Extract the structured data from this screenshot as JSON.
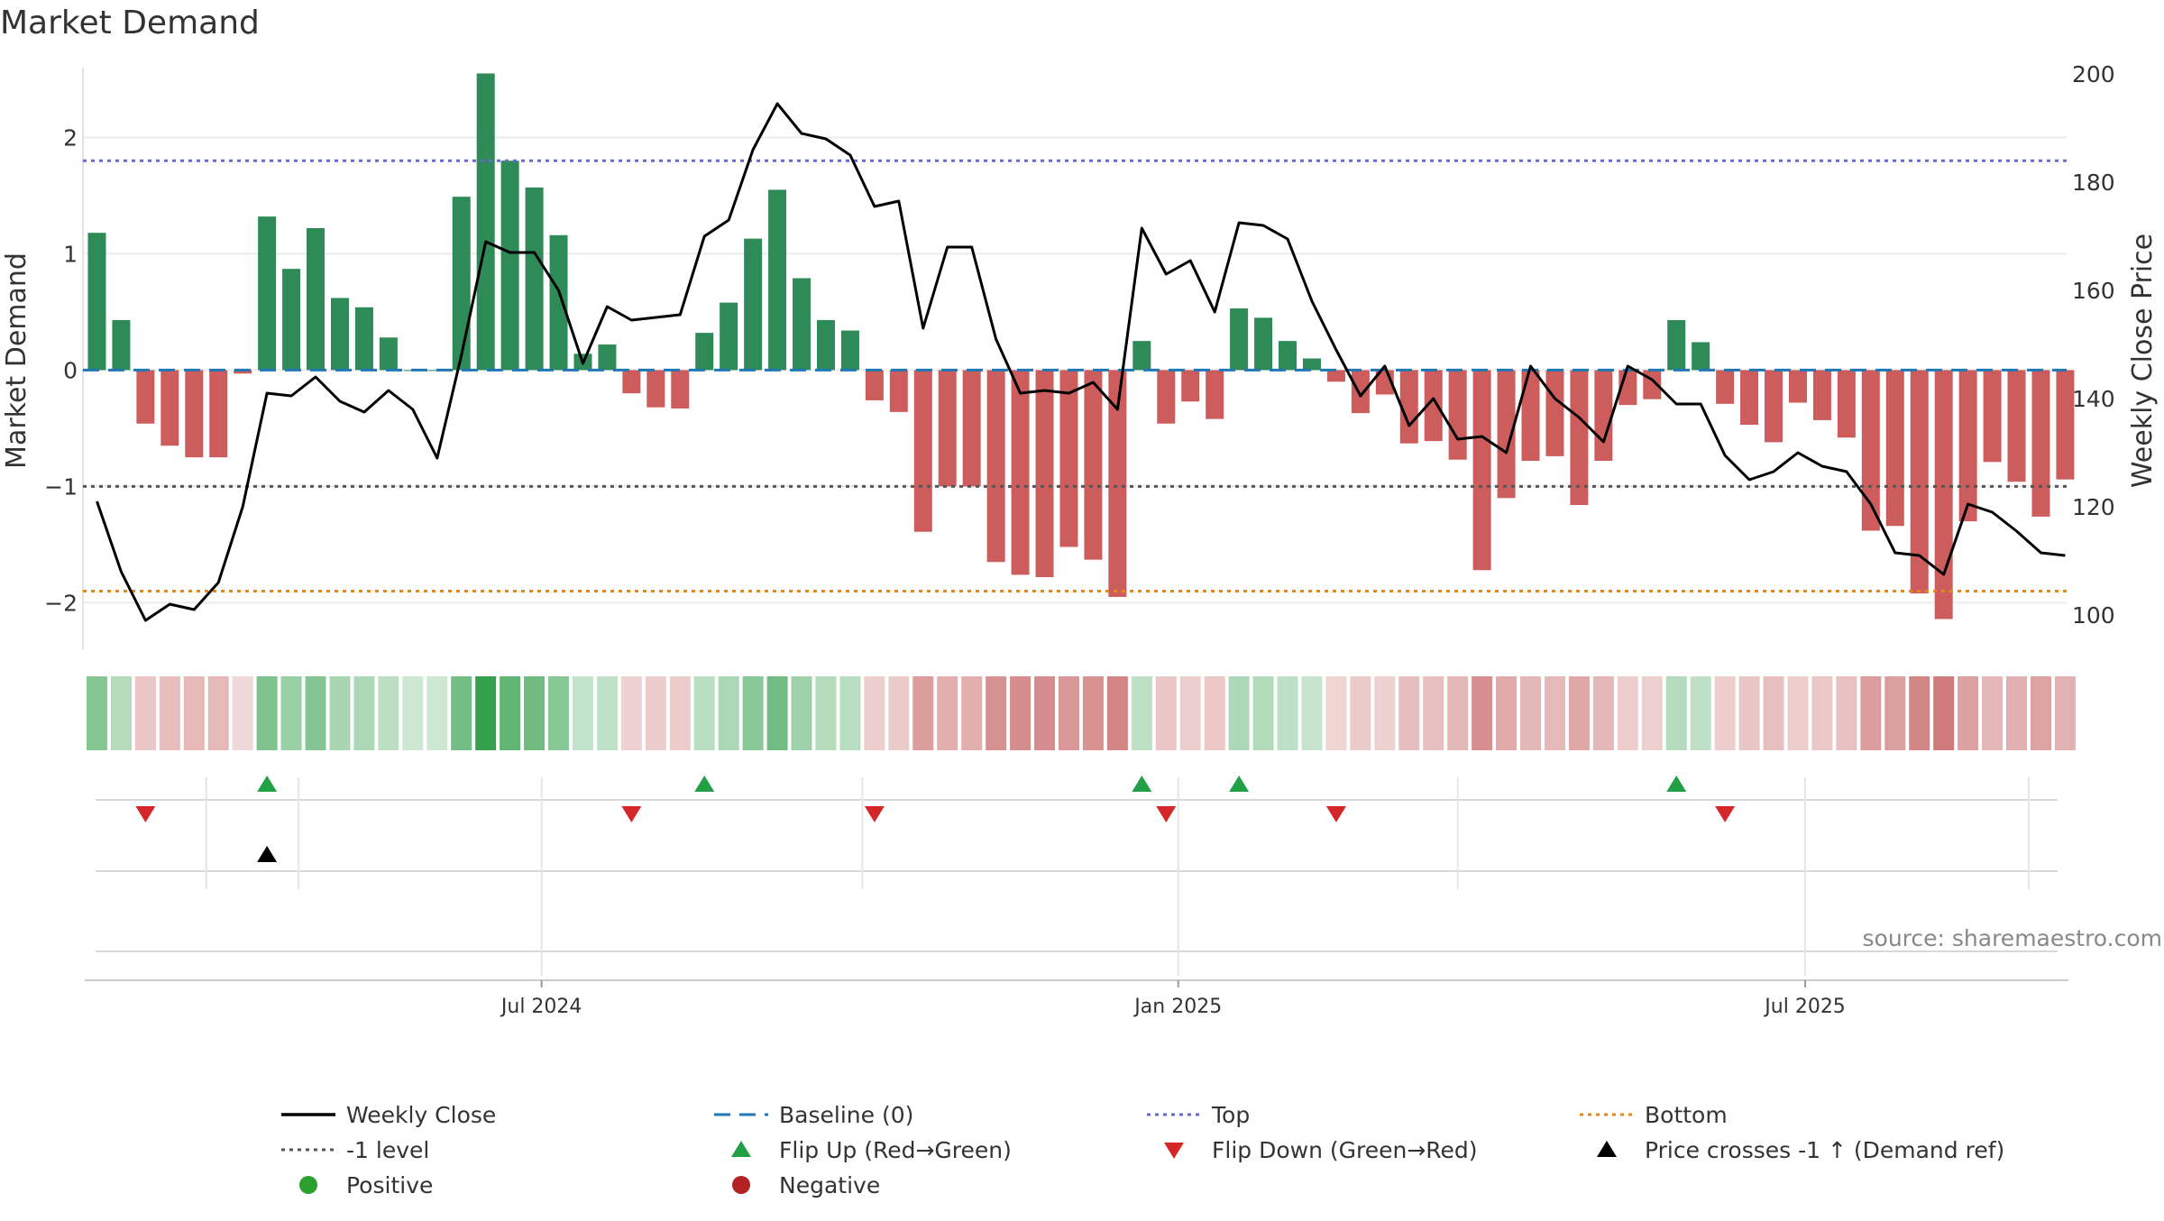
{
  "chart_data": {
    "type": "bar",
    "title": "Market Demand",
    "ylabel": "Market Demand",
    "y2label": "Weekly Close Price",
    "ylim": [
      -2.4,
      2.6
    ],
    "y2lim": [
      94.5,
      200
    ],
    "yticks": [
      -2,
      -1,
      0,
      1,
      2
    ],
    "y2ticks": [
      100,
      120,
      140,
      160,
      180,
      200
    ],
    "x_tick_labels": [
      "Jul 2024",
      "Jan 2025",
      "Jul 2025"
    ],
    "x_tick_bar_index": [
      18.3,
      44.5,
      70.3
    ],
    "source": "source: sharemaestro.com",
    "reference_lines": {
      "top": 1.8,
      "bottom": -1.9,
      "minus_one": -1.0,
      "baseline": 0
    },
    "demand": [
      1.18,
      0.43,
      -0.46,
      -0.65,
      -0.75,
      -0.75,
      -0.03,
      1.32,
      0.87,
      1.22,
      0.62,
      0.54,
      0.28,
      0.0,
      0.0,
      1.49,
      2.55,
      1.8,
      1.57,
      1.16,
      0.14,
      0.22,
      -0.2,
      -0.32,
      -0.33,
      0.32,
      0.58,
      1.13,
      1.55,
      0.79,
      0.43,
      0.34,
      -0.26,
      -0.36,
      -1.39,
      -1.0,
      -1.0,
      -1.65,
      -1.76,
      -1.78,
      -1.52,
      -1.63,
      -1.95,
      0.25,
      -0.46,
      -0.27,
      -0.42,
      0.53,
      0.45,
      0.25,
      0.1,
      -0.1,
      -0.37,
      -0.21,
      -0.63,
      -0.61,
      -0.77,
      -1.72,
      -1.1,
      -0.78,
      -0.74,
      -1.16,
      -0.78,
      -0.3,
      -0.25,
      0.43,
      0.24,
      -0.29,
      -0.47,
      -0.62,
      -0.28,
      -0.43,
      -0.58,
      -1.38,
      -1.34,
      -1.92,
      -2.14,
      -1.3,
      -0.79,
      -0.96,
      -1.26,
      -0.94
    ],
    "weekly_close": [
      121,
      108,
      99,
      102,
      101,
      106,
      120,
      141,
      140.5,
      144,
      139.5,
      137.5,
      141.5,
      138,
      129,
      148,
      169,
      167,
      167,
      160,
      146.5,
      157,
      154.5,
      155,
      155.5,
      170,
      173,
      186,
      194.5,
      189,
      188,
      185,
      175.5,
      176.5,
      153,
      168,
      168,
      151,
      141,
      141.5,
      141,
      143,
      138,
      171.5,
      163,
      165.5,
      156,
      172.5,
      172,
      169.5,
      158,
      149,
      140.5,
      146,
      135,
      140,
      132.5,
      133,
      130,
      146,
      140,
      136.5,
      132,
      146,
      143.5,
      139,
      139,
      129.5,
      125,
      126.5,
      130,
      127.5,
      126.5,
      120.5,
      111.5,
      111,
      107.5,
      120.5,
      119,
      115.5,
      111.5,
      111
    ],
    "flip_up_index": [
      7,
      25,
      43,
      47,
      65
    ],
    "flip_down_index": [
      2,
      22,
      32,
      44,
      51,
      67
    ],
    "price_cross_index": [
      7
    ],
    "legend": [
      {
        "label": "Weekly Close",
        "style": "line",
        "color": "#000000"
      },
      {
        "label": "Baseline (0)",
        "style": "dash",
        "color": "#1f77b4"
      },
      {
        "label": "Top",
        "style": "dot",
        "color": "#6a6ad0"
      },
      {
        "label": "Bottom",
        "style": "dot",
        "color": "#e08a1e"
      },
      {
        "label": "-1 level",
        "style": "dot",
        "color": "#555555"
      },
      {
        "label": "Flip Up (Red→Green)",
        "style": "tri-up",
        "color": "#22a045"
      },
      {
        "label": "Flip Down (Green→Red)",
        "style": "tri-down",
        "color": "#d62728"
      },
      {
        "label": "Price crosses -1 ↑ (Demand ref)",
        "style": "tri-up",
        "color": "#000000"
      },
      {
        "label": "Positive",
        "style": "dot-marker",
        "color": "#2ca02c"
      },
      {
        "label": "Negative",
        "style": "dot-marker",
        "color": "#b22222"
      }
    ],
    "colors": {
      "positive": "#2e8b57",
      "negative": "#cd5c5c",
      "line": "#000000",
      "grid": "#ececec",
      "heat_pos": "#35a04e",
      "heat_neg": "#c96a6a"
    }
  }
}
